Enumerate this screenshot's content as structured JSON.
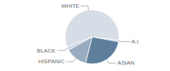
{
  "chart_data": {
    "type": "pie",
    "categories": [
      "WHITE",
      "A.I.",
      "ASIAN",
      "HISPANIC",
      "BLACK"
    ],
    "values": [
      58,
      1,
      26,
      13,
      2
    ],
    "colors": [
      "#d6dde6",
      "#c3cfdb",
      "#5e7f9c",
      "#98abbf",
      "#c9d3de"
    ],
    "data_labels": false
  }
}
